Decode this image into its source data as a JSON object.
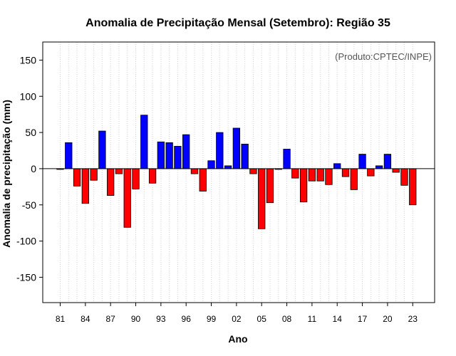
{
  "chart_data": {
    "type": "bar",
    "title": "Anomalia de Precipitação Mensal (Setembro): Região 35",
    "xlabel": "Ano",
    "ylabel": "Anomalia de precipitação (mm)",
    "annotation": "(Produto:CPTEC/INPE)",
    "categories": [
      "81",
      "82",
      "83",
      "84",
      "85",
      "86",
      "87",
      "88",
      "89",
      "90",
      "91",
      "92",
      "93",
      "94",
      "95",
      "96",
      "97",
      "98",
      "99",
      "00",
      "01",
      "02",
      "03",
      "04",
      "05",
      "06",
      "07",
      "08",
      "09",
      "10",
      "11",
      "12",
      "13",
      "14",
      "15",
      "16",
      "17",
      "18",
      "19",
      "20",
      "21",
      "22",
      "23"
    ],
    "values": [
      -1,
      36,
      -24,
      -48,
      -16,
      52,
      -37,
      -7,
      -81,
      -28,
      74,
      -20,
      37,
      36,
      31,
      47,
      -7,
      -31,
      11,
      50,
      4,
      56,
      34,
      -7,
      -83,
      -47,
      -1,
      27,
      -13,
      -46,
      -17,
      -17,
      -22,
      7,
      -11,
      -29,
      20,
      -10,
      4,
      20,
      -5,
      -23,
      -50
    ],
    "xtick_labels": [
      "81",
      "84",
      "87",
      "90",
      "93",
      "96",
      "99",
      "02",
      "05",
      "08",
      "11",
      "14",
      "17",
      "20",
      "23"
    ],
    "yticks": [
      -150,
      -100,
      -50,
      0,
      50,
      100,
      150
    ],
    "ylim": [
      -185,
      175
    ],
    "grid": "vertical dotted",
    "colors": {
      "positive": "#0000ff",
      "negative": "#ff0000",
      "annotation": "#555555"
    }
  }
}
